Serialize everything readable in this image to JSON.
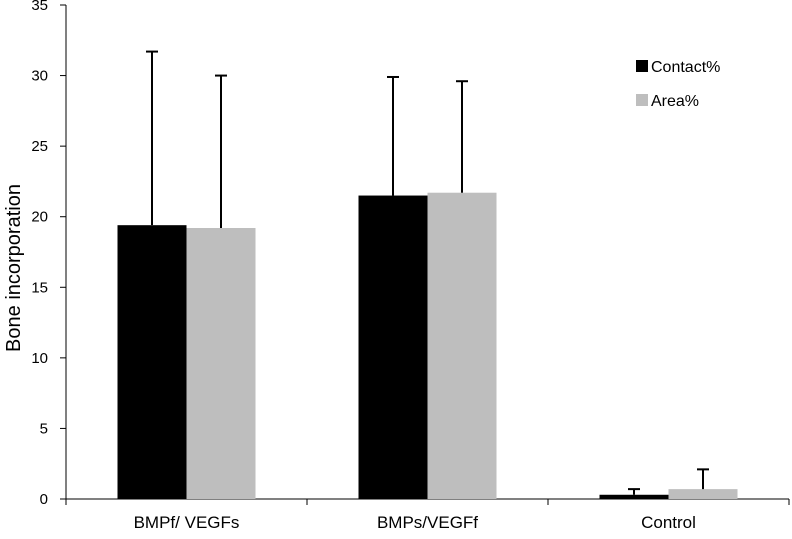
{
  "chart_data": {
    "type": "bar",
    "title": "",
    "xlabel": "",
    "ylabel": "Bone incorporation",
    "ylim": [
      0,
      35
    ],
    "yticks": [
      0,
      5,
      10,
      15,
      20,
      25,
      30,
      35
    ],
    "grid": false,
    "legend_position": "top-right",
    "categories": [
      "BMPf/ VEGFs",
      "BMPs/VEGFf",
      "Control"
    ],
    "series": [
      {
        "name": "Contact%",
        "color": "#000000",
        "values": [
          19.4,
          21.5,
          0.3
        ],
        "error_upper": [
          31.7,
          29.9,
          0.7
        ]
      },
      {
        "name": "Area%",
        "color": "#bebebe",
        "values": [
          19.2,
          21.7,
          0.7
        ],
        "error_upper": [
          30.0,
          29.6,
          2.1
        ]
      }
    ]
  }
}
